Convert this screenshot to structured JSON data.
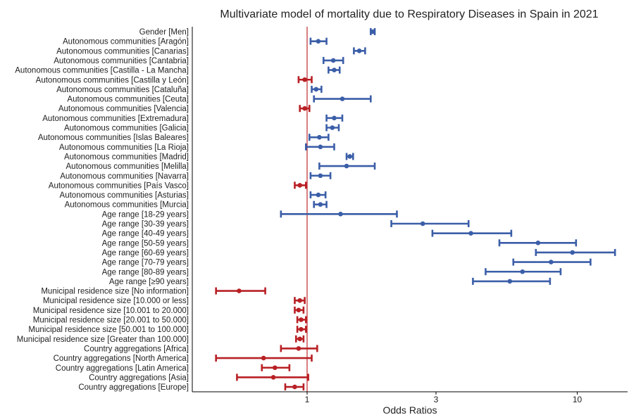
{
  "chart_data": {
    "type": "forest",
    "title": "Multivariate model of mortality due to Respiratory Diseases in Spain in 2021",
    "xlabel": "Odds Ratios",
    "x_scale": "log",
    "x_ticks": [
      1,
      3,
      10
    ],
    "x_tick_labels": [
      "1",
      "3",
      "10"
    ],
    "xlim": [
      0.3,
      14.2
    ],
    "reference_line": 1,
    "grid": false,
    "colors": {
      "risk": "#3b5ea8",
      "protective": "#b82025",
      "reference": "#c0282d"
    },
    "rows": [
      {
        "label": "Gender [Men]",
        "or": 1.75,
        "low": 1.72,
        "high": 1.78,
        "dir": "risk"
      },
      {
        "label": "Autonomous communities [Aragón]",
        "or": 1.1,
        "low": 1.03,
        "high": 1.18,
        "dir": "risk"
      },
      {
        "label": "Autonomous communities [Canarias]",
        "or": 1.56,
        "low": 1.49,
        "high": 1.64,
        "dir": "risk"
      },
      {
        "label": "Autonomous communities [Cantabria]",
        "or": 1.25,
        "low": 1.15,
        "high": 1.36,
        "dir": "risk"
      },
      {
        "label": "Autonomous communities [Castilla - La Mancha]",
        "or": 1.26,
        "low": 1.2,
        "high": 1.32,
        "dir": "risk"
      },
      {
        "label": "Autonomous communities [Castilla y León]",
        "or": 0.98,
        "low": 0.93,
        "high": 1.04,
        "dir": "protective"
      },
      {
        "label": "Autonomous communities [Cataluña]",
        "or": 1.08,
        "low": 1.04,
        "high": 1.13,
        "dir": "risk"
      },
      {
        "label": "Autonomous communities [Ceuta]",
        "or": 1.35,
        "low": 1.06,
        "high": 1.72,
        "dir": "risk"
      },
      {
        "label": "Autonomous communities [Valencia]",
        "or": 0.98,
        "low": 0.94,
        "high": 1.02,
        "dir": "protective"
      },
      {
        "label": "Autonomous communities [Extremadura]",
        "or": 1.26,
        "low": 1.18,
        "high": 1.35,
        "dir": "risk"
      },
      {
        "label": "Autonomous communities [Galicia]",
        "or": 1.24,
        "low": 1.18,
        "high": 1.31,
        "dir": "risk"
      },
      {
        "label": "Autonomous communities [Islas Baleares]",
        "or": 1.11,
        "low": 1.02,
        "high": 1.2,
        "dir": "risk"
      },
      {
        "label": "Autonomous communities [La Rioja]",
        "or": 1.12,
        "low": 0.99,
        "high": 1.26,
        "dir": "risk"
      },
      {
        "label": "Autonomous communities [Madrid]",
        "or": 1.44,
        "low": 1.4,
        "high": 1.48,
        "dir": "risk"
      },
      {
        "label": "Autonomous communities [Melilla]",
        "or": 1.4,
        "low": 1.11,
        "high": 1.78,
        "dir": "risk"
      },
      {
        "label": "Autonomous communities [Navarra]",
        "or": 1.12,
        "low": 1.03,
        "high": 1.22,
        "dir": "risk"
      },
      {
        "label": "Autonomous communities [País Vasco]",
        "or": 0.94,
        "low": 0.9,
        "high": 0.99,
        "dir": "protective"
      },
      {
        "label": "Autonomous communities [Asturias]",
        "or": 1.1,
        "low": 1.03,
        "high": 1.17,
        "dir": "risk"
      },
      {
        "label": "Autonomous communities [Murcia]",
        "or": 1.12,
        "low": 1.06,
        "high": 1.18,
        "dir": "risk"
      },
      {
        "label": "Age range [18-29 years]",
        "or": 1.33,
        "low": 0.8,
        "high": 2.15,
        "dir": "risk"
      },
      {
        "label": "Age range [30-39 years]",
        "or": 2.68,
        "low": 2.05,
        "high": 3.96,
        "dir": "risk"
      },
      {
        "label": "Age range [40-49 years]",
        "or": 4.04,
        "low": 2.91,
        "high": 5.7,
        "dir": "risk"
      },
      {
        "label": "Age range [50-59 years]",
        "or": 7.16,
        "low": 5.15,
        "high": 9.9,
        "dir": "risk"
      },
      {
        "label": "Age range [60-69 years]",
        "or": 9.6,
        "low": 7.03,
        "high": 13.8,
        "dir": "risk"
      },
      {
        "label": "Age range [70-79 years]",
        "or": 8.0,
        "low": 5.8,
        "high": 11.2,
        "dir": "risk"
      },
      {
        "label": "Age range [80-89 years]",
        "or": 6.27,
        "low": 4.58,
        "high": 8.68,
        "dir": "risk"
      },
      {
        "label": "Age range [≥90 years]",
        "or": 5.63,
        "low": 4.11,
        "high": 7.93,
        "dir": "risk"
      },
      {
        "label": "Municipal residence size [No information]",
        "or": 0.56,
        "low": 0.46,
        "high": 0.7,
        "dir": "protective"
      },
      {
        "label": "Municipal residence size [10.000 or less]",
        "or": 0.94,
        "low": 0.9,
        "high": 0.98,
        "dir": "protective"
      },
      {
        "label": "Municipal residence size [10.001 to 20.000]",
        "or": 0.93,
        "low": 0.9,
        "high": 0.97,
        "dir": "protective"
      },
      {
        "label": "Municipal residence size [20.001 to 50.000]",
        "or": 0.95,
        "low": 0.92,
        "high": 0.99,
        "dir": "protective"
      },
      {
        "label": "Municipal residence size [50.001 to 100.000]",
        "or": 0.95,
        "low": 0.92,
        "high": 0.99,
        "dir": "protective"
      },
      {
        "label": "Municipal residence size [Greater than 100.000]",
        "or": 0.94,
        "low": 0.91,
        "high": 0.97,
        "dir": "protective"
      },
      {
        "label": "Country aggregations [Africa]",
        "or": 0.93,
        "low": 0.8,
        "high": 1.09,
        "dir": "protective"
      },
      {
        "label": "Country aggregations [North America]",
        "or": 0.69,
        "low": 0.46,
        "high": 1.04,
        "dir": "protective"
      },
      {
        "label": "Country aggregations [Latin America]",
        "or": 0.76,
        "low": 0.68,
        "high": 0.86,
        "dir": "protective"
      },
      {
        "label": "Country aggregations [Asia]",
        "or": 0.75,
        "low": 0.55,
        "high": 1.01,
        "dir": "protective"
      },
      {
        "label": "Country aggregations [Europe]",
        "or": 0.9,
        "low": 0.83,
        "high": 0.97,
        "dir": "protective"
      }
    ]
  }
}
